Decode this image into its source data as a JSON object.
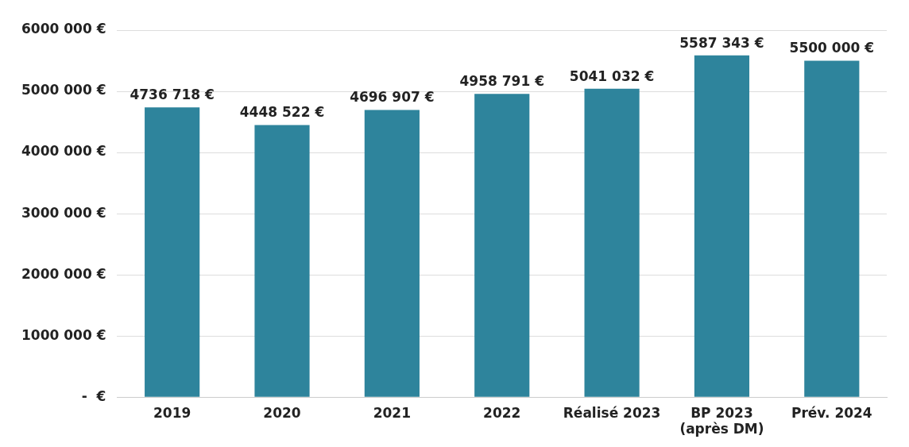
{
  "chart_data": {
    "type": "bar",
    "categories": [
      "2019",
      "2020",
      "2021",
      "2022",
      "Réalisé 2023",
      "BP 2023 (après DM)",
      "Prév. 2024"
    ],
    "values": [
      4736718,
      4448522,
      4696907,
      4958791,
      5041032,
      5587343,
      5500000
    ],
    "value_labels": [
      "4736 718 €",
      "4448 522 €",
      "4696 907 €",
      "4958 791 €",
      "5041 032 €",
      "5587 343 €",
      "5500 000 €"
    ],
    "color": "#2e849c",
    "ylim": [
      0,
      6000000
    ],
    "yticks": [
      {
        "value": 0,
        "label": "-  €"
      },
      {
        "value": 1000000,
        "label": "1000 000 €"
      },
      {
        "value": 2000000,
        "label": "2000 000 €"
      },
      {
        "value": 3000000,
        "label": "3000 000 €"
      },
      {
        "value": 4000000,
        "label": "4000 000 €"
      },
      {
        "value": 5000000,
        "label": "5000 000 €"
      },
      {
        "value": 6000000,
        "label": "6000 000 €"
      }
    ],
    "grid": "y",
    "legend": false
  }
}
